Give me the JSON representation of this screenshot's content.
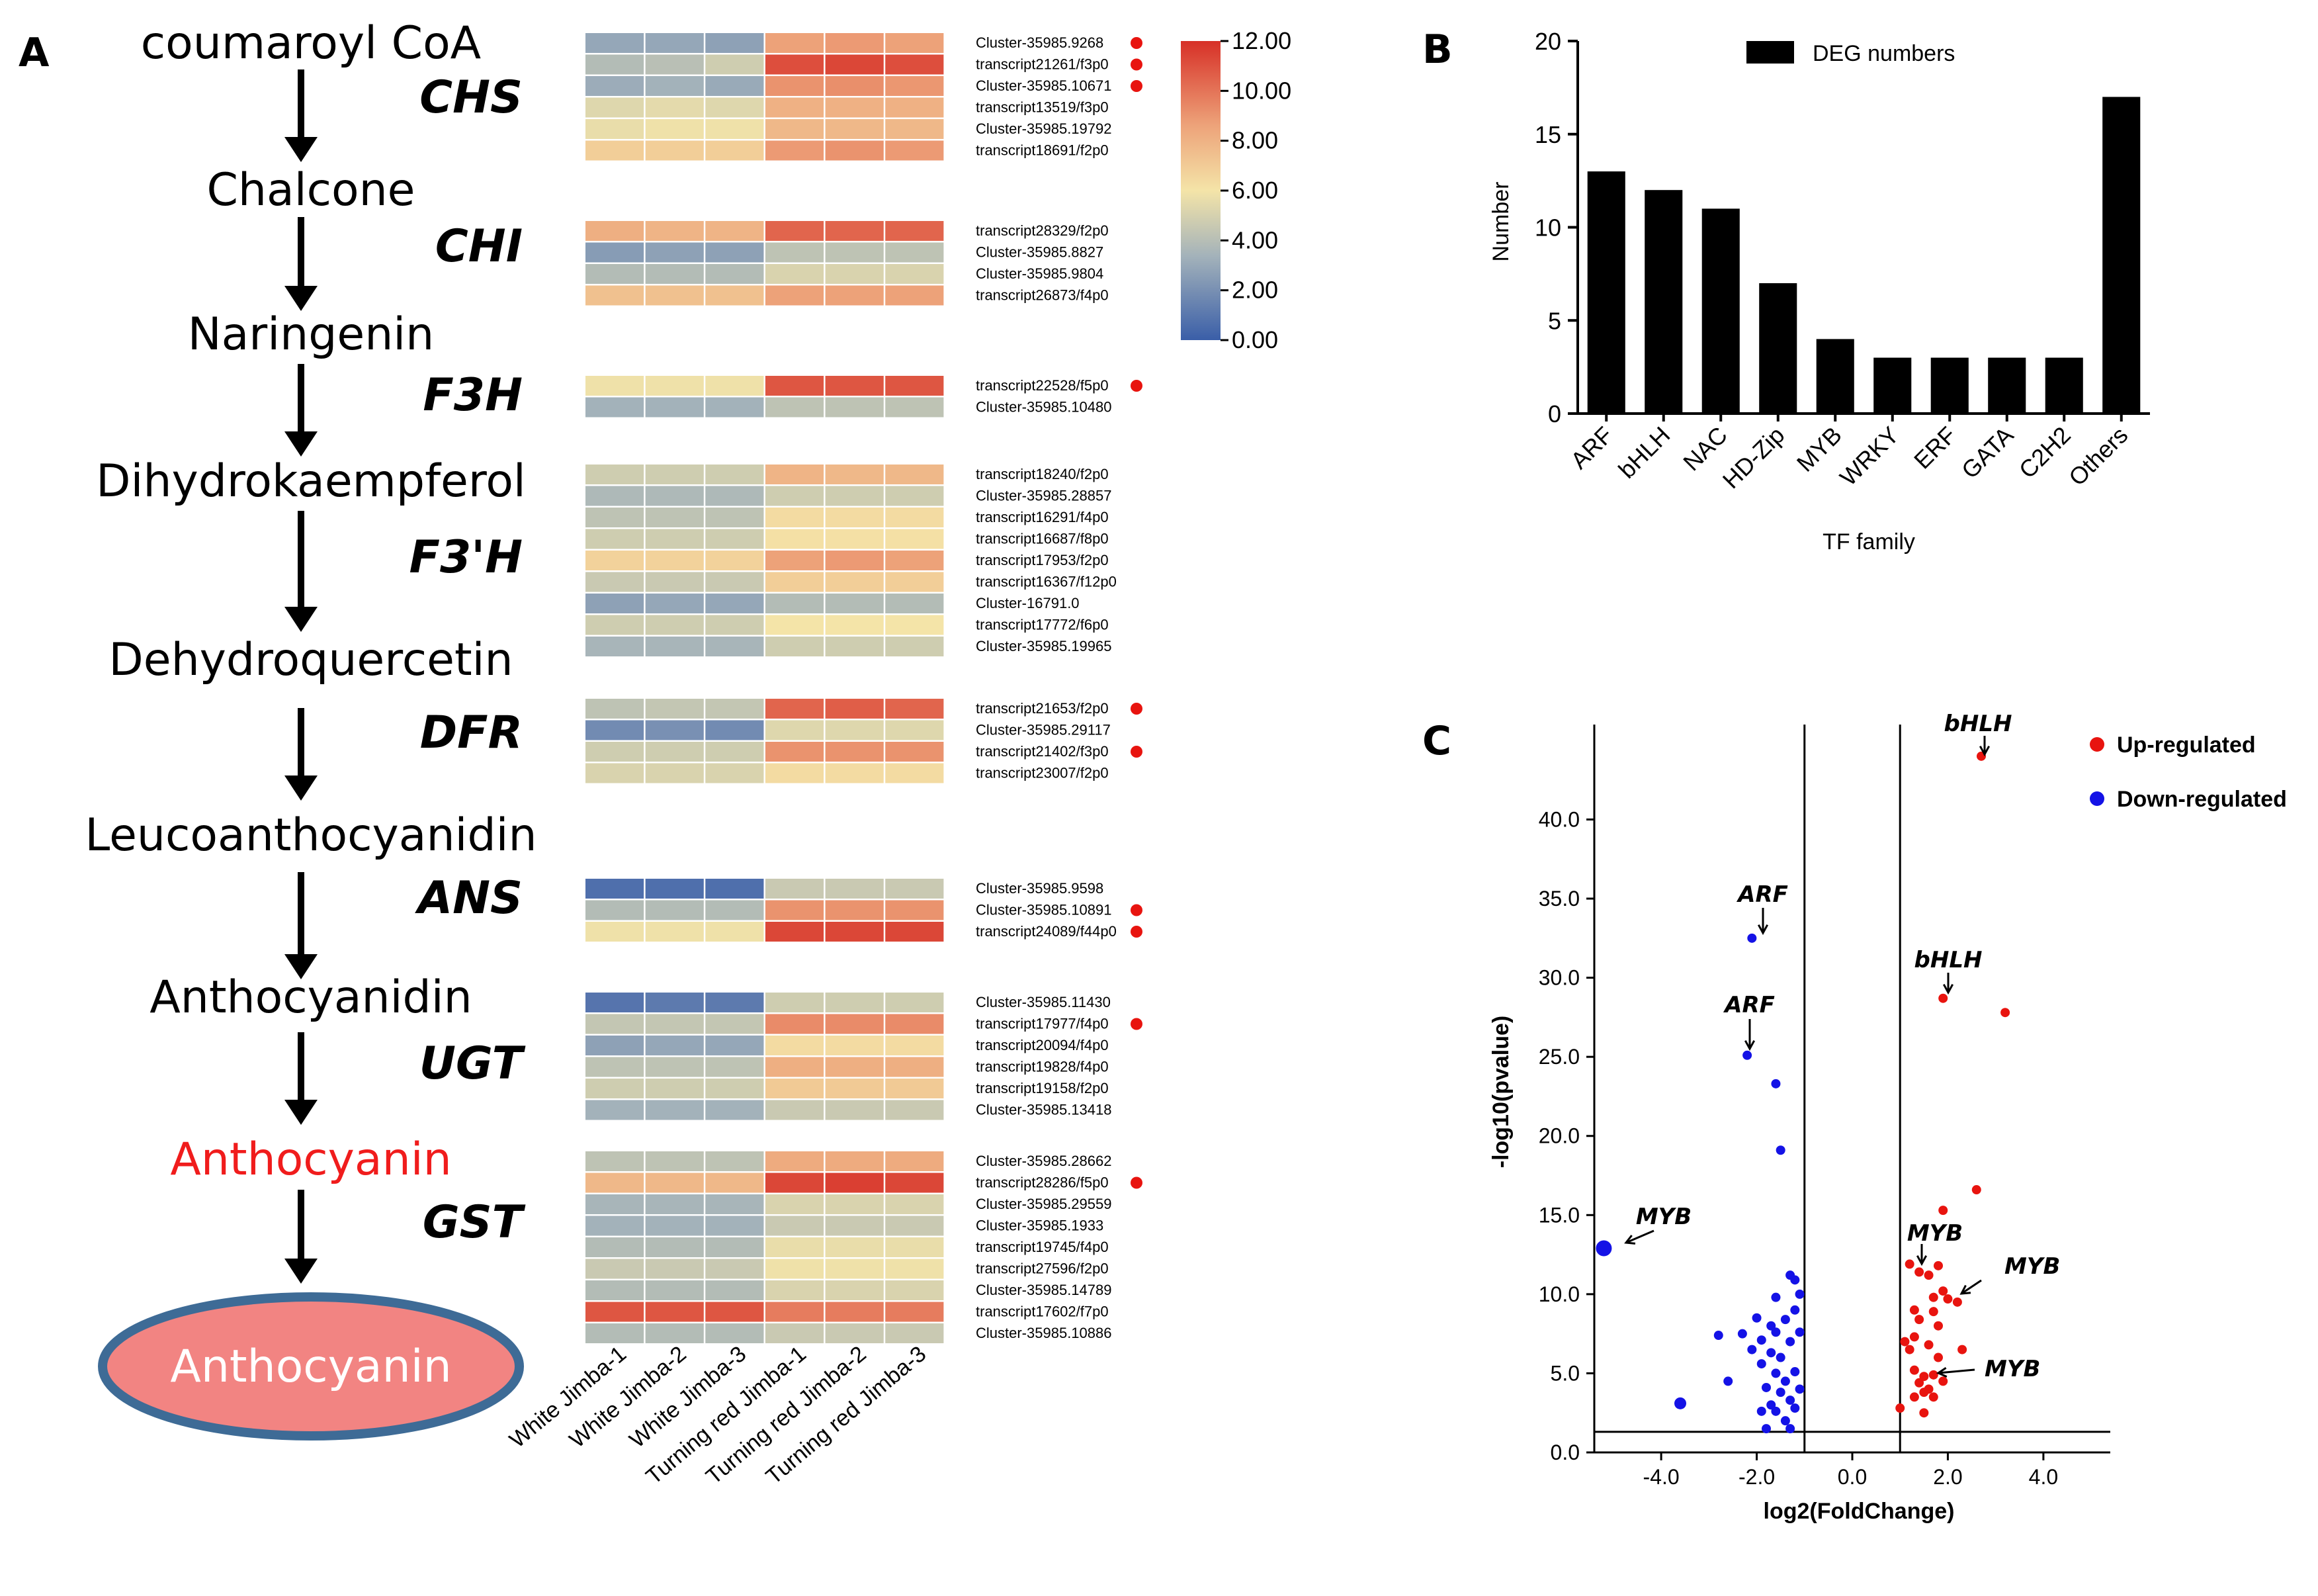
{
  "panelA": {
    "label": "A",
    "metabolites": [
      "coumaroyl CoA",
      "Chalcone",
      "Naringenin",
      "Dihydrokaempferol",
      "Dehydroquercetin",
      "Leucoanthocyanidin",
      "Anthocyanidin",
      "Anthocyanin"
    ],
    "final_product": "Anthocyanin",
    "final_color": "#f01c1c",
    "ellipse_fill": "#f28482",
    "ellipse_stroke": "#3e6b96",
    "columns": [
      "White Jimba-1",
      "White Jimba-2",
      "White Jimba-3",
      "Turning red Jimba-1",
      "Turning red Jimba-2",
      "Turning red Jimba-3"
    ],
    "colorbar": {
      "max": 12.0,
      "min": 0.0,
      "labels": [
        "12.00",
        "10.00",
        "8.00",
        "6.00",
        "4.00",
        "2.00",
        "0.00"
      ],
      "colors": [
        "#d73027",
        "#eda279",
        "#f4e4a8",
        "#a3b2ba",
        "#3a5ea8"
      ]
    },
    "groups": [
      {
        "enzyme": "CHS",
        "genes": [
          {
            "id": "Cluster-35985.9268",
            "mark": true,
            "values": [
              2.6,
              2.6,
              2.4,
              9.0,
              9.2,
              9.0
            ]
          },
          {
            "id": "transcript21261/f3p0",
            "mark": true,
            "values": [
              3.6,
              3.8,
              4.6,
              11.2,
              11.4,
              11.2
            ]
          },
          {
            "id": "Cluster-35985.10671",
            "mark": true,
            "values": [
              2.8,
              3.0,
              2.7,
              9.4,
              9.5,
              9.3
            ]
          },
          {
            "id": "transcript13519/f3p0",
            "mark": false,
            "values": [
              5.2,
              5.4,
              5.2,
              8.3,
              8.3,
              8.3
            ]
          },
          {
            "id": "Cluster-35985.19792",
            "mark": false,
            "values": [
              5.6,
              5.8,
              5.8,
              8.0,
              8.0,
              8.0
            ]
          },
          {
            "id": "transcript18691/f2p0",
            "mark": false,
            "values": [
              7.0,
              7.0,
              7.0,
              9.2,
              9.4,
              9.2
            ]
          }
        ]
      },
      {
        "enzyme": "CHI",
        "genes": [
          {
            "id": "transcript28329/f2p0",
            "mark": false,
            "values": [
              8.4,
              8.2,
              8.2,
              10.6,
              10.6,
              10.6
            ]
          },
          {
            "id": "Cluster-35985.8827",
            "mark": false,
            "values": [
              2.2,
              2.4,
              2.4,
              4.0,
              4.0,
              4.0
            ]
          },
          {
            "id": "Cluster-35985.9804",
            "mark": false,
            "values": [
              3.6,
              3.6,
              3.6,
              5.0,
              5.0,
              5.0
            ]
          },
          {
            "id": "transcript26873/f4p0",
            "mark": false,
            "values": [
              7.6,
              7.6,
              7.6,
              9.0,
              9.0,
              9.0
            ]
          }
        ]
      },
      {
        "enzyme": "F3H",
        "genes": [
          {
            "id": "transcript22528/f5p0",
            "mark": true,
            "values": [
              5.8,
              5.8,
              5.8,
              11.0,
              11.0,
              11.0
            ]
          },
          {
            "id": "Cluster-35985.10480",
            "mark": false,
            "values": [
              3.0,
              3.0,
              3.0,
              4.0,
              4.0,
              4.0
            ]
          }
        ]
      },
      {
        "enzyme": "F3'H",
        "genes": [
          {
            "id": "transcript18240/f2p0",
            "mark": false,
            "values": [
              4.6,
              4.6,
              4.6,
              8.2,
              8.0,
              8.0
            ]
          },
          {
            "id": "Cluster-35985.28857",
            "mark": false,
            "values": [
              3.4,
              3.4,
              3.4,
              4.6,
              4.6,
              4.6
            ]
          },
          {
            "id": "transcript16291/f4p0",
            "mark": false,
            "values": [
              4.0,
              4.0,
              4.0,
              6.4,
              6.4,
              6.4
            ]
          },
          {
            "id": "transcript16687/f8p0",
            "mark": false,
            "values": [
              4.6,
              4.6,
              4.6,
              6.2,
              6.2,
              6.2
            ]
          },
          {
            "id": "transcript17953/f2p0",
            "mark": false,
            "values": [
              6.8,
              6.8,
              6.8,
              9.0,
              9.2,
              9.0
            ]
          },
          {
            "id": "transcript16367/f12p0",
            "mark": false,
            "values": [
              4.4,
              4.4,
              4.4,
              7.0,
              7.0,
              7.0
            ]
          },
          {
            "id": "Cluster-16791.0",
            "mark": false,
            "values": [
              2.4,
              2.6,
              2.6,
              3.6,
              3.6,
              3.6
            ]
          },
          {
            "id": "transcript17772/f6p0",
            "mark": false,
            "values": [
              4.6,
              4.6,
              4.6,
              6.0,
              6.0,
              6.0
            ]
          },
          {
            "id": "Cluster-35985.19965",
            "mark": false,
            "values": [
              3.2,
              3.2,
              3.2,
              4.6,
              4.6,
              4.6
            ]
          }
        ]
      },
      {
        "enzyme": "DFR",
        "genes": [
          {
            "id": "transcript21653/f2p0",
            "mark": true,
            "values": [
              4.0,
              4.2,
              4.2,
              10.6,
              10.8,
              10.6
            ]
          },
          {
            "id": "Cluster-35985.29117",
            "mark": false,
            "values": [
              1.6,
              1.8,
              1.6,
              5.2,
              5.2,
              5.2
            ]
          },
          {
            "id": "transcript21402/f3p0",
            "mark": true,
            "values": [
              4.6,
              4.6,
              4.6,
              9.4,
              9.4,
              9.4
            ]
          },
          {
            "id": "transcript23007/f2p0",
            "mark": false,
            "values": [
              5.0,
              5.0,
              5.0,
              6.4,
              6.4,
              6.4
            ]
          }
        ]
      },
      {
        "enzyme": "ANS",
        "genes": [
          {
            "id": "Cluster-35985.9598",
            "mark": false,
            "values": [
              0.6,
              0.6,
              0.6,
              4.4,
              4.4,
              4.4
            ]
          },
          {
            "id": "Cluster-35985.10891",
            "mark": true,
            "values": [
              3.6,
              3.6,
              3.6,
              9.4,
              9.4,
              9.4
            ]
          },
          {
            "id": "transcript24089/f44p0",
            "mark": true,
            "values": [
              5.8,
              5.8,
              5.8,
              11.4,
              11.4,
              11.4
            ]
          }
        ]
      },
      {
        "enzyme": "UGT",
        "genes": [
          {
            "id": "Cluster-35985.11430",
            "mark": false,
            "values": [
              0.8,
              1.0,
              1.0,
              4.6,
              4.6,
              4.6
            ]
          },
          {
            "id": "transcript17977/f4p0",
            "mark": true,
            "values": [
              4.2,
              4.2,
              4.2,
              9.6,
              9.6,
              9.6
            ]
          },
          {
            "id": "transcript20094/f4p0",
            "mark": false,
            "values": [
              2.4,
              2.6,
              2.6,
              6.4,
              6.4,
              6.4
            ]
          },
          {
            "id": "transcript19828/f4p0",
            "mark": false,
            "values": [
              4.0,
              4.0,
              4.0,
              8.4,
              8.4,
              8.4
            ]
          },
          {
            "id": "transcript19158/f2p0",
            "mark": false,
            "values": [
              4.6,
              4.6,
              4.6,
              7.2,
              7.2,
              7.2
            ]
          },
          {
            "id": "Cluster-35985.13418",
            "mark": false,
            "values": [
              3.0,
              3.0,
              3.0,
              4.4,
              4.4,
              4.4
            ]
          }
        ]
      },
      {
        "enzyme": "GST",
        "genes": [
          {
            "id": "Cluster-35985.28662",
            "mark": false,
            "values": [
              4.0,
              4.0,
              4.0,
              8.6,
              8.6,
              8.6
            ]
          },
          {
            "id": "transcript28286/f5p0",
            "mark": true,
            "values": [
              8.0,
              8.0,
              8.0,
              11.4,
              11.6,
              11.4
            ]
          },
          {
            "id": "Cluster-35985.29559",
            "mark": false,
            "values": [
              3.2,
              3.2,
              3.2,
              5.0,
              5.0,
              5.0
            ]
          },
          {
            "id": "Cluster-35985.1933",
            "mark": false,
            "values": [
              3.0,
              3.0,
              3.0,
              4.4,
              4.4,
              4.4
            ]
          },
          {
            "id": "transcript19745/f4p0",
            "mark": false,
            "values": [
              3.6,
              3.6,
              3.6,
              5.6,
              5.6,
              5.6
            ]
          },
          {
            "id": "transcript27596/f2p0",
            "mark": false,
            "values": [
              4.4,
              4.4,
              4.4,
              5.8,
              5.8,
              5.8
            ]
          },
          {
            "id": "Cluster-35985.14789",
            "mark": false,
            "values": [
              3.6,
              3.6,
              3.6,
              5.0,
              5.0,
              5.0
            ]
          },
          {
            "id": "transcript17602/f7p0",
            "mark": false,
            "values": [
              11.0,
              11.0,
              11.0,
              10.0,
              10.0,
              10.0
            ]
          },
          {
            "id": "Cluster-35985.10886",
            "mark": false,
            "values": [
              3.6,
              3.6,
              3.6,
              4.4,
              4.4,
              4.4
            ]
          }
        ]
      }
    ]
  },
  "panelB": {
    "label": "B"
  },
  "panelC": {
    "label": "C"
  },
  "chart_data": [
    {
      "type": "bar",
      "title": "",
      "categories": [
        "ARF",
        "bHLH",
        "NAC",
        "HD-Zip",
        "MYB",
        "WRKY",
        "ERF",
        "GATA",
        "C2H2",
        "Others"
      ],
      "values": [
        13,
        12,
        11,
        7,
        4,
        3,
        3,
        3,
        3,
        17
      ],
      "xlabel": "TF family",
      "ylabel": "Number",
      "ylim": [
        0,
        20
      ],
      "yticks": [
        "0",
        "5",
        "10",
        "15",
        "20"
      ],
      "legend": "DEG numbers",
      "legend_position": "top",
      "bar_color": "#000000"
    },
    {
      "type": "scatter",
      "xlabel": "log2(FoldChange)",
      "ylabel": "-log10(pvalue)",
      "xlim": [
        -5.4,
        5.4
      ],
      "ylim": [
        0,
        46
      ],
      "xticks": [
        "-4.0",
        "-2.0",
        "0.0",
        "2.0",
        "4.0"
      ],
      "yticks": [
        "0.0",
        "5.0",
        "10.0",
        "15.0",
        "20.0",
        "25.0",
        "30.0",
        "35.0",
        "40.0"
      ],
      "thresholds": {
        "fc_left": -1,
        "fc_right": 1,
        "pvalue": 1.3
      },
      "legend": [
        {
          "name": "Up-regulated",
          "color": "#e8140f"
        },
        {
          "name": "Down-regulated",
          "color": "#1412e6"
        }
      ],
      "legend_position": "top-right",
      "series": [
        {
          "name": "Up-regulated",
          "color": "#e8140f",
          "points": [
            [
              2.7,
              44.0
            ],
            [
              1.9,
              28.7
            ],
            [
              3.2,
              27.8
            ],
            [
              2.6,
              16.6
            ],
            [
              1.9,
              15.3
            ],
            [
              1.2,
              11.9
            ],
            [
              1.4,
              11.4
            ],
            [
              1.6,
              11.2
            ],
            [
              1.8,
              11.8
            ],
            [
              1.9,
              10.2
            ],
            [
              2.2,
              9.5
            ],
            [
              1.7,
              9.8
            ],
            [
              2.0,
              9.7
            ],
            [
              1.3,
              9.0
            ],
            [
              1.7,
              8.9
            ],
            [
              1.4,
              8.4
            ],
            [
              1.8,
              8.0
            ],
            [
              1.3,
              7.3
            ],
            [
              1.1,
              7.0
            ],
            [
              1.6,
              6.8
            ],
            [
              1.2,
              6.5
            ],
            [
              2.3,
              6.5
            ],
            [
              1.8,
              6.0
            ],
            [
              1.3,
              5.2
            ],
            [
              1.5,
              4.8
            ],
            [
              1.7,
              4.9
            ],
            [
              1.4,
              4.4
            ],
            [
              1.6,
              4.0
            ],
            [
              1.9,
              4.5
            ],
            [
              1.5,
              3.8
            ],
            [
              1.3,
              3.5
            ],
            [
              1.7,
              3.5
            ],
            [
              1.5,
              2.5
            ],
            [
              1.0,
              2.8
            ]
          ]
        },
        {
          "name": "Down-regulated",
          "color": "#1412e6",
          "points": [
            [
              -2.1,
              32.5
            ],
            [
              -2.2,
              25.1
            ],
            [
              -1.6,
              23.3
            ],
            [
              -1.5,
              19.1
            ],
            [
              -5.2,
              12.9
            ],
            [
              -1.3,
              11.2
            ],
            [
              -1.2,
              10.9
            ],
            [
              -1.1,
              10.0
            ],
            [
              -1.6,
              9.8
            ],
            [
              -1.2,
              9.0
            ],
            [
              -2.0,
              8.5
            ],
            [
              -1.4,
              8.4
            ],
            [
              -1.7,
              8.0
            ],
            [
              -2.3,
              7.5
            ],
            [
              -1.9,
              7.1
            ],
            [
              -1.6,
              7.6
            ],
            [
              -2.8,
              7.4
            ],
            [
              -1.1,
              7.6
            ],
            [
              -1.3,
              7.0
            ],
            [
              -2.1,
              6.5
            ],
            [
              -1.7,
              6.3
            ],
            [
              -1.5,
              6.0
            ],
            [
              -1.9,
              5.6
            ],
            [
              -1.2,
              5.1
            ],
            [
              -1.6,
              5.0
            ],
            [
              -2.6,
              4.5
            ],
            [
              -1.4,
              4.5
            ],
            [
              -1.8,
              4.1
            ],
            [
              -1.1,
              4.0
            ],
            [
              -1.5,
              3.8
            ],
            [
              -1.3,
              3.3
            ],
            [
              -1.7,
              3.0
            ],
            [
              -1.2,
              2.8
            ],
            [
              -1.6,
              2.6
            ],
            [
              -1.9,
              2.6
            ],
            [
              -1.4,
              2.0
            ],
            [
              -1.8,
              1.5
            ],
            [
              -1.3,
              1.5
            ],
            [
              -3.6,
              3.1
            ]
          ]
        }
      ],
      "highlight": [
        {
          "label": "bHLH",
          "x": 2.7,
          "y": 44.0
        },
        {
          "label": "ARF",
          "x": -2.1,
          "y": 32.5
        },
        {
          "label": "bHLH",
          "x": 1.9,
          "y": 28.7
        },
        {
          "label": "ARF",
          "x": -2.2,
          "y": 25.1
        },
        {
          "label": "MYB",
          "x": -5.2,
          "y": 12.9
        },
        {
          "label": "MYB",
          "x": 1.4,
          "y": 11.4
        },
        {
          "label": "MYB",
          "x": 2.2,
          "y": 9.5
        },
        {
          "label": "MYB",
          "x": 1.6,
          "y": 4.8
        }
      ]
    }
  ]
}
